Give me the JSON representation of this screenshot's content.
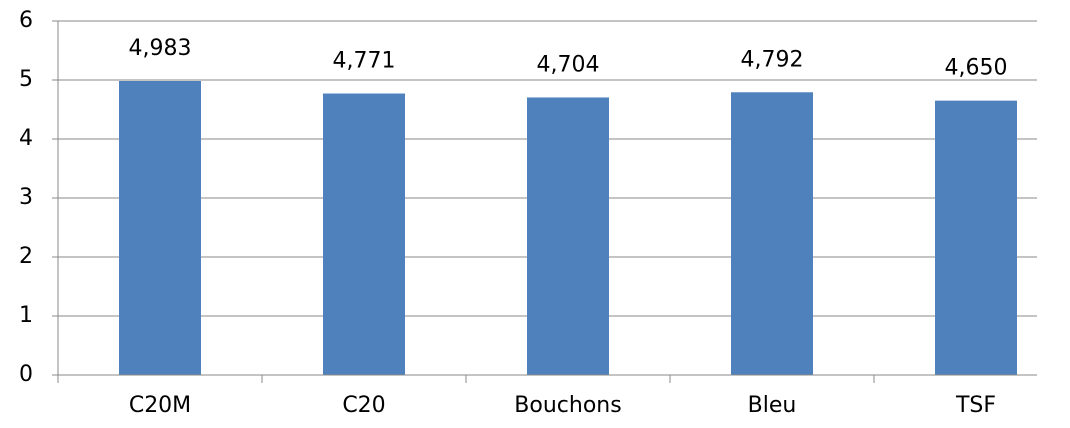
{
  "chart_data": {
    "type": "bar",
    "categories": [
      "C20M",
      "C20",
      "Bouchons",
      "Bleu",
      "TSF"
    ],
    "values": [
      4.983,
      4.771,
      4.704,
      4.792,
      4.65
    ],
    "value_labels": [
      "4,983",
      "4,771",
      "4,704",
      "4,792",
      "4,650"
    ],
    "color": "#4f81bd",
    "ylim": [
      0,
      6
    ],
    "yticks": [
      0,
      1,
      2,
      3,
      4,
      5,
      6
    ],
    "grid": true
  }
}
